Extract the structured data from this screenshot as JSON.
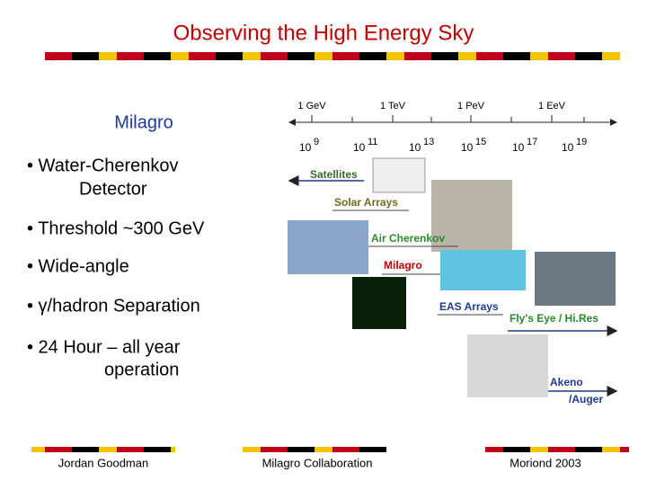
{
  "header": {
    "title": "Observing the High Energy Sky"
  },
  "left": {
    "heading": "Milagro",
    "bullets": [
      "• Water-Cherenkov",
      "Detector",
      "• Threshold ~300 GeV",
      "• Wide-angle",
      "• γ/hadron Separation",
      "• 24 Hour – all year",
      "operation"
    ]
  },
  "diagram": {
    "energy_labels": [
      "1 GeV",
      "1 TeV",
      "1 PeV",
      "1 EeV"
    ],
    "exponents": [
      {
        "base": "10",
        "exp": "9"
      },
      {
        "base": "10",
        "exp": "11"
      },
      {
        "base": "10",
        "exp": "13"
      },
      {
        "base": "10",
        "exp": "15"
      },
      {
        "base": "10",
        "exp": "17"
      },
      {
        "base": "10",
        "exp": "19"
      }
    ],
    "instruments": [
      "Satellites",
      "Solar Arrays",
      "Air Cherenkov",
      "Milagro",
      "EAS Arrays",
      "Fly's Eye / Hi.Res",
      "Akeno",
      "/Auger"
    ]
  },
  "footer": {
    "left": "Jordan Goodman",
    "center": "Milagro Collaboration",
    "right": "Moriond 2003"
  }
}
